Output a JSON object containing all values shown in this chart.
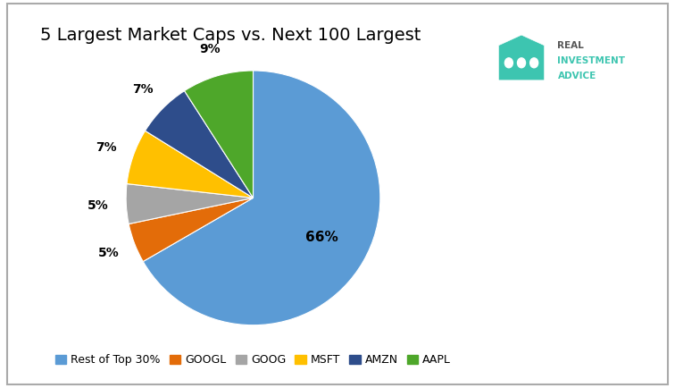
{
  "title": "5 Largest Market Caps vs. Next 100 Largest",
  "slices": [
    66,
    5,
    5,
    7,
    7,
    9
  ],
  "labels": [
    "Rest of Top 30%",
    "GOOGL",
    "GOOG",
    "MSFT",
    "AMZN",
    "AAPL"
  ],
  "colors": [
    "#5B9BD5",
    "#E36C09",
    "#A5A5A5",
    "#FFC000",
    "#2E4D8B",
    "#4EA72A"
  ],
  "legend_labels": [
    "Rest of Top 30%",
    "GOOGL",
    "GOOG",
    "MSFT",
    "AMZN",
    "AAPL"
  ],
  "startangle": 90,
  "background_color": "#FFFFFF",
  "title_fontsize": 14,
  "legend_fontsize": 9,
  "pct_label_distance": 1.22,
  "logo_text_real": "REAL",
  "logo_text_investment": "INVESTMENT",
  "logo_text_advice": "ADVICE",
  "logo_color_text": "#555555",
  "logo_color_teal": "#3DC5B0",
  "logo_color_teal_dark": "#2DA898"
}
